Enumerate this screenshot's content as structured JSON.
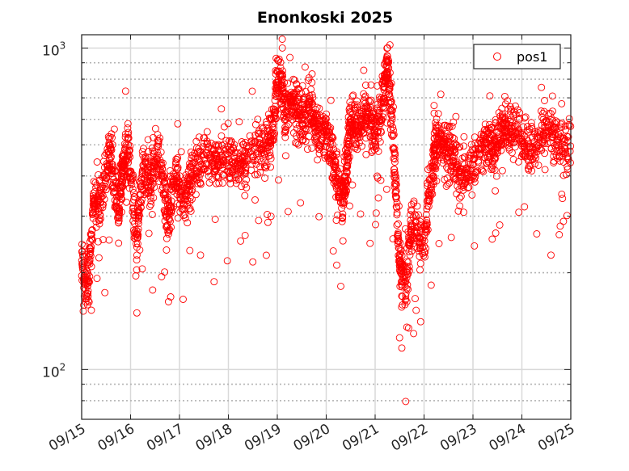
{
  "chart_data": {
    "type": "scatter",
    "title": "Enonkoski 2025",
    "xlabel": "",
    "ylabel": "",
    "yscale": "log",
    "ylim": [
      70,
      1100
    ],
    "xlim": [
      "2025-09-15",
      "2025-09-25"
    ],
    "x_tick_labels": [
      "09/15",
      "09/16",
      "09/17",
      "09/18",
      "09/19",
      "09/20",
      "09/21",
      "09/22",
      "09/23",
      "09/24",
      "09/25"
    ],
    "y_tick_labels": [
      {
        "base": "10",
        "exp": "2"
      },
      {
        "base": "10",
        "exp": "3"
      }
    ],
    "grid": true,
    "legend_position": "top-right",
    "marker": "open-circle",
    "series": [
      {
        "name": "pos1",
        "color": "#ff0000",
        "profile": [
          [
            "2025-09-15 00:00",
            220
          ],
          [
            "2025-09-15 03:00",
            180
          ],
          [
            "2025-09-15 06:00",
            330
          ],
          [
            "2025-09-15 10:00",
            340
          ],
          [
            "2025-09-15 14:00",
            480
          ],
          [
            "2025-09-15 18:00",
            300
          ],
          [
            "2025-09-15 20:00",
            420
          ],
          [
            "2025-09-15 23:00",
            480
          ],
          [
            "2025-09-16 03:00",
            250
          ],
          [
            "2025-09-16 06:00",
            420
          ],
          [
            "2025-09-16 10:00",
            390
          ],
          [
            "2025-09-16 14:00",
            480
          ],
          [
            "2025-09-16 18:00",
            300
          ],
          [
            "2025-09-16 22:00",
            400
          ],
          [
            "2025-09-17 02:00",
            330
          ],
          [
            "2025-09-17 06:00",
            400
          ],
          [
            "2025-09-17 12:00",
            470
          ],
          [
            "2025-09-17 18:00",
            440
          ],
          [
            "2025-09-18 00:00",
            450
          ],
          [
            "2025-09-18 06:00",
            420
          ],
          [
            "2025-09-18 12:00",
            490
          ],
          [
            "2025-09-18 18:00",
            500
          ],
          [
            "2025-09-18 22:00",
            560
          ],
          [
            "2025-09-19 01:00",
            880
          ],
          [
            "2025-09-19 04:00",
            620
          ],
          [
            "2025-09-19 08:00",
            700
          ],
          [
            "2025-09-19 12:00",
            580
          ],
          [
            "2025-09-19 16:00",
            680
          ],
          [
            "2025-09-19 20:00",
            540
          ],
          [
            "2025-09-20 00:00",
            560
          ],
          [
            "2025-09-20 04:00",
            430
          ],
          [
            "2025-09-20 08:00",
            330
          ],
          [
            "2025-09-20 10:00",
            420
          ],
          [
            "2025-09-20 12:00",
            620
          ],
          [
            "2025-09-20 16:00",
            560
          ],
          [
            "2025-09-20 20:00",
            620
          ],
          [
            "2025-09-21 00:00",
            540
          ],
          [
            "2025-09-21 04:00",
            700
          ],
          [
            "2025-09-21 06:00",
            900
          ],
          [
            "2025-09-21 09:00",
            500
          ],
          [
            "2025-09-21 12:00",
            210
          ],
          [
            "2025-09-21 15:00",
            180
          ],
          [
            "2025-09-21 18:00",
            300
          ],
          [
            "2025-09-22 00:00",
            240
          ],
          [
            "2025-09-22 04:00",
            420
          ],
          [
            "2025-09-22 06:00",
            520
          ],
          [
            "2025-09-22 10:00",
            500
          ],
          [
            "2025-09-22 14:00",
            460
          ],
          [
            "2025-09-22 18:00",
            400
          ],
          [
            "2025-09-23 00:00",
            430
          ],
          [
            "2025-09-23 06:00",
            520
          ],
          [
            "2025-09-23 10:00",
            480
          ],
          [
            "2025-09-23 14:00",
            560
          ],
          [
            "2025-09-23 18:00",
            560
          ],
          [
            "2025-09-24 00:00",
            530
          ],
          [
            "2025-09-24 06:00",
            480
          ],
          [
            "2025-09-24 12:00",
            560
          ],
          [
            "2025-09-24 18:00",
            510
          ],
          [
            "2025-09-25 00:00",
            500
          ]
        ]
      }
    ]
  },
  "colors": {
    "series": "#ff0000",
    "grid_major": "#d9d9d9",
    "grid_minor": "#b3b3b3",
    "axes": "#262626"
  }
}
